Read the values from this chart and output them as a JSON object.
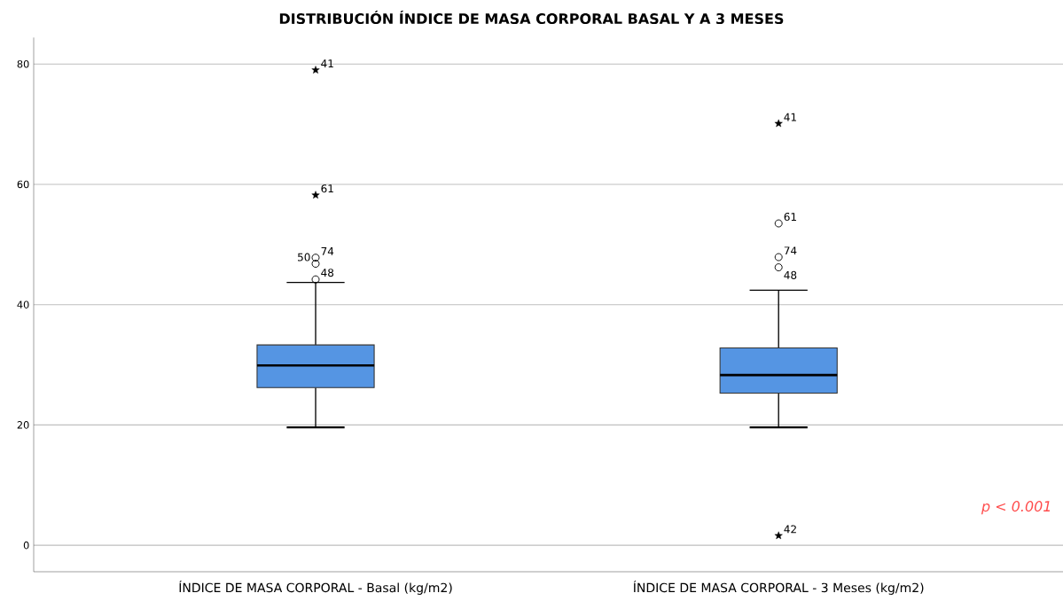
{
  "chart_data": {
    "type": "box",
    "title": "DISTRIBUCIÓN ÍNDICE DE MASA CORPORAL BASAL Y A 3 MESES",
    "categories": [
      "ÍNDICE DE MASA CORPORAL - Basal (kg/m2)",
      "ÍNDICE DE MASA CORPORAL - 3 Meses (kg/m2)"
    ],
    "color": "#5595e3",
    "marker": "circle",
    "boxes": [
      {
        "low": 19.6,
        "q1": 26.2,
        "median": 29.9,
        "q3": 33.3,
        "high": 43.7,
        "outliers": [
          44.2,
          46.8,
          47.8
        ]
      },
      {
        "low": 19.6,
        "q1": 25.3,
        "median": 28.3,
        "q3": 32.8,
        "high": 42.4,
        "outliers": [
          46.2,
          47.9,
          53.5
        ]
      }
    ],
    "series": [
      {
        "type": "scatter",
        "marker": "star",
        "color": "#000000",
        "x": [
          "ÍNDICE DE MASA CORPORAL - Basal (kg/m2)",
          "ÍNDICE DE MASA CORPORAL - Basal (kg/m2)",
          "ÍNDICE DE MASA CORPORAL - 3 Meses (kg/m2)",
          "ÍNDICE DE MASA CORPORAL - 3 Meses (kg/m2)"
        ],
        "values": [
          79.0,
          58.2,
          70.1,
          1.6
        ]
      }
    ],
    "ylim": [
      -4.4,
      84.4
    ],
    "yticks": [
      0,
      20,
      40,
      60,
      80
    ],
    "grid": "y",
    "annotations": [
      {
        "text": "41",
        "x": "ÍNDICE DE MASA CORPORAL - Basal (kg/m2)",
        "y": 79.0
      },
      {
        "text": "61",
        "x": "ÍNDICE DE MASA CORPORAL - Basal (kg/m2)",
        "y": 58.2
      },
      "74",
      "50",
      {
        "text": "48",
        "x": "ÍNDICE DE MASA CORPORAL - Basal (kg/m2)",
        "y": 44.2
      },
      {
        "text": "41",
        "x": "ÍNDICE DE MASA CORPORAL - 3 Meses (kg/m2)",
        "y": 70.1
      },
      "61",
      "74",
      "48",
      {
        "text": "42",
        "x": "ÍNDICE DE MASA CORPORAL - 3 Meses (kg/m2)",
        "y": 1.6
      },
      "p < 0.001"
    ]
  }
}
